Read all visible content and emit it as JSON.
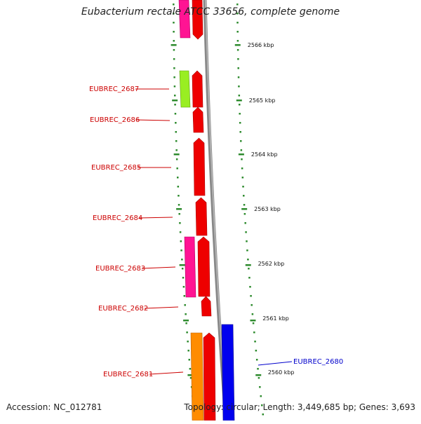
{
  "title": "Eubacterium rectale ATCC 33656, complete genome",
  "footer": {
    "accession": "Accession: NC_012781",
    "topology": "Topology: circular; Length: 3,449,685 bp; Genes: 3,693"
  },
  "scale_ticks": [
    "2566 kbp",
    "2565 kbp",
    "2564 kbp",
    "2563 kbp",
    "2562 kbp",
    "2561 kbp",
    "2560 kbp"
  ],
  "gene_labels": [
    {
      "text": "EUBREC_2687",
      "color": "#cc0000"
    },
    {
      "text": "EUBREC_2686",
      "color": "#cc0000"
    },
    {
      "text": "EUBREC_2685",
      "color": "#cc0000"
    },
    {
      "text": "EUBREC_2684",
      "color": "#cc0000"
    },
    {
      "text": "EUBREC_2683",
      "color": "#cc0000"
    },
    {
      "text": "EUBREC_2682",
      "color": "#cc0000"
    },
    {
      "text": "EUBREC_2681",
      "color": "#cc0000"
    },
    {
      "text": "EUBREC_2680",
      "color": "#0000cc"
    }
  ],
  "colors": {
    "gene_red": "#ee0000",
    "gene_pink": "#ff1493",
    "gene_lime": "#99ee22",
    "gene_orange": "#ff8c00",
    "gene_blue": "#0000ee",
    "backbone": "#888888",
    "tick_green": "#2e8b2e"
  }
}
